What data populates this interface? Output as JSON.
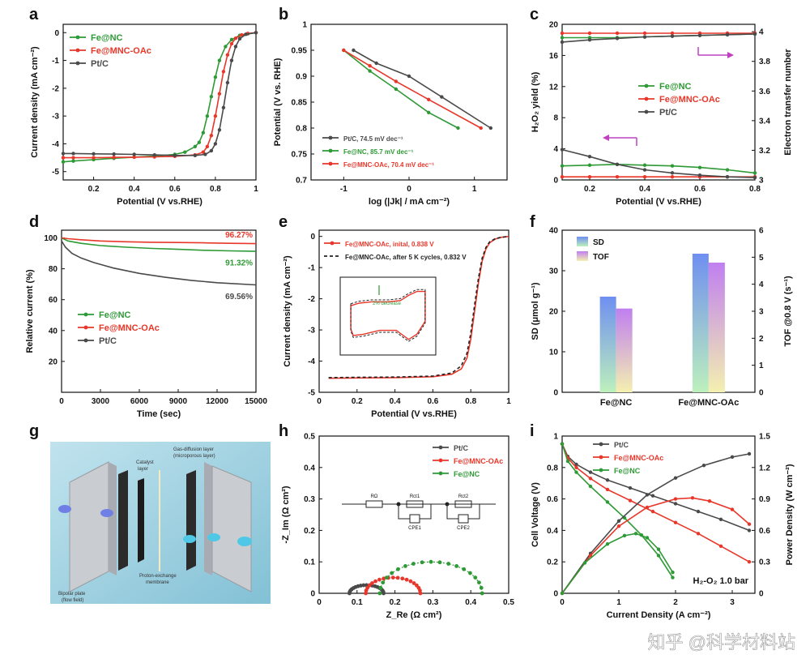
{
  "watermark": "知乎 @科学材料站",
  "colors": {
    "green": "#2e9a35",
    "red": "#e8372a",
    "gray": "#4a4a4a",
    "magenta": "#c040c0"
  },
  "chart_data": [
    {
      "panel": "a",
      "type": "line",
      "xlabel": "Potential  (V vs.RHE)",
      "ylabel": "Current density  (mA cm⁻²)",
      "xlim": [
        0.05,
        1.0
      ],
      "ylim": [
        -5.3,
        0.3
      ],
      "xticks": [
        0.2,
        0.4,
        0.6,
        0.8,
        1.0
      ],
      "yticks": [
        0,
        -1,
        -2,
        -3,
        -4,
        -5
      ],
      "legend_position": "top-left",
      "series": [
        {
          "name": "Fe@NC",
          "color": "#2e9a35",
          "x": [
            0.05,
            0.1,
            0.2,
            0.3,
            0.4,
            0.5,
            0.6,
            0.65,
            0.7,
            0.72,
            0.74,
            0.76,
            0.78,
            0.8,
            0.82,
            0.85,
            0.88,
            0.92,
            0.96,
            1.0
          ],
          "y": [
            -4.65,
            -4.62,
            -4.57,
            -4.52,
            -4.48,
            -4.44,
            -4.38,
            -4.3,
            -4.1,
            -3.95,
            -3.6,
            -3.0,
            -2.3,
            -1.6,
            -1.0,
            -0.5,
            -0.25,
            -0.1,
            -0.04,
            0
          ]
        },
        {
          "name": "Fe@MNC-OAc",
          "color": "#e8372a",
          "x": [
            0.05,
            0.1,
            0.2,
            0.3,
            0.4,
            0.5,
            0.6,
            0.7,
            0.74,
            0.76,
            0.78,
            0.8,
            0.82,
            0.84,
            0.86,
            0.88,
            0.9,
            0.93,
            0.96,
            1.0
          ],
          "y": [
            -4.5,
            -4.5,
            -4.5,
            -4.49,
            -4.48,
            -4.47,
            -4.45,
            -4.4,
            -4.3,
            -4.1,
            -3.7,
            -3.0,
            -2.2,
            -1.4,
            -0.8,
            -0.4,
            -0.2,
            -0.08,
            -0.03,
            0
          ]
        },
        {
          "name": "Pt/C",
          "color": "#4a4a4a",
          "x": [
            0.05,
            0.1,
            0.2,
            0.3,
            0.4,
            0.5,
            0.6,
            0.7,
            0.75,
            0.78,
            0.8,
            0.82,
            0.84,
            0.86,
            0.88,
            0.9,
            0.92,
            0.95,
            1.0
          ],
          "y": [
            -4.35,
            -4.35,
            -4.36,
            -4.37,
            -4.38,
            -4.4,
            -4.42,
            -4.42,
            -4.38,
            -4.25,
            -4.0,
            -3.5,
            -2.7,
            -1.8,
            -1.0,
            -0.5,
            -0.22,
            -0.06,
            0
          ]
        }
      ]
    },
    {
      "panel": "b",
      "type": "line",
      "xlabel": "log  (|Jk| / mA cm⁻²)",
      "ylabel": "Potential  (V vs. RHE)",
      "xlim": [
        -1.5,
        1.5
      ],
      "ylim": [
        0.7,
        1.0
      ],
      "xticks": [
        -1,
        0,
        1
      ],
      "yticks": [
        1.0,
        0.95,
        0.9,
        0.85,
        0.8,
        0.75,
        0.7
      ],
      "legend_position": "bottom-left",
      "series": [
        {
          "name": "Pt/C, 74.5 mV dec⁻¹",
          "color": "#4a4a4a",
          "x": [
            -0.85,
            -0.5,
            0,
            0.5,
            1.25
          ],
          "y": [
            0.95,
            0.925,
            0.9,
            0.86,
            0.8
          ]
        },
        {
          "name": "Fe@NC, 85.7 mV dec⁻¹",
          "color": "#2e9a35",
          "x": [
            -1.0,
            -0.6,
            -0.2,
            0.3,
            0.75
          ],
          "y": [
            0.95,
            0.91,
            0.875,
            0.83,
            0.8
          ]
        },
        {
          "name": "Fe@MNC-OAc, 70.4 mV dec⁻¹",
          "color": "#e8372a",
          "x": [
            -1.0,
            -0.6,
            -0.2,
            0.3,
            1.1
          ],
          "y": [
            0.95,
            0.92,
            0.89,
            0.855,
            0.8
          ]
        }
      ]
    },
    {
      "panel": "c",
      "type": "line",
      "xlabel": "Potential  (V vs.RHE)",
      "ylabel": "H₂O₂ yield  (%)",
      "ylabel_right": "Electron transfer number",
      "xlim": [
        0.1,
        0.8
      ],
      "ylim": [
        0,
        20
      ],
      "ylim_right": [
        3.0,
        4.05
      ],
      "xticks": [
        0.2,
        0.4,
        0.6,
        0.8
      ],
      "yticks": [
        0,
        4,
        8,
        12,
        16,
        20
      ],
      "yticks_right": [
        3.0,
        3.2,
        3.4,
        3.6,
        3.8,
        4.0
      ],
      "legend_position": "center-right",
      "series": [
        {
          "name": "Fe@NC",
          "color": "#2e9a35",
          "axis": "left",
          "x": [
            0.1,
            0.2,
            0.3,
            0.4,
            0.5,
            0.6,
            0.7,
            0.8
          ],
          "y": [
            1.8,
            1.9,
            2.0,
            1.9,
            1.8,
            1.6,
            1.3,
            0.9
          ]
        },
        {
          "name": "Fe@MNC-OAc",
          "color": "#e8372a",
          "axis": "left",
          "x": [
            0.1,
            0.2,
            0.3,
            0.4,
            0.5,
            0.6,
            0.7,
            0.8
          ],
          "y": [
            0.4,
            0.4,
            0.4,
            0.4,
            0.4,
            0.4,
            0.4,
            0.4
          ]
        },
        {
          "name": "Pt/C",
          "color": "#4a4a4a",
          "axis": "left",
          "x": [
            0.1,
            0.2,
            0.3,
            0.4,
            0.5,
            0.6,
            0.7,
            0.8
          ],
          "y": [
            3.9,
            3.0,
            2.0,
            1.3,
            0.9,
            0.6,
            0.4,
            0.3
          ]
        },
        {
          "name": "Fe@NC",
          "color": "#2e9a35",
          "axis": "right",
          "x": [
            0.1,
            0.2,
            0.3,
            0.4,
            0.5,
            0.6,
            0.7,
            0.8
          ],
          "y": [
            3.96,
            3.96,
            3.96,
            3.965,
            3.97,
            3.975,
            3.98,
            3.985
          ]
        },
        {
          "name": "Fe@MNC-OAc",
          "color": "#e8372a",
          "axis": "right",
          "x": [
            0.1,
            0.2,
            0.3,
            0.4,
            0.5,
            0.6,
            0.7,
            0.8
          ],
          "y": [
            3.99,
            3.99,
            3.99,
            3.99,
            3.99,
            3.99,
            3.99,
            3.99
          ]
        },
        {
          "name": "Pt/C",
          "color": "#4a4a4a",
          "axis": "right",
          "x": [
            0.1,
            0.2,
            0.3,
            0.4,
            0.5,
            0.6,
            0.7,
            0.8
          ],
          "y": [
            3.93,
            3.945,
            3.955,
            3.965,
            3.97,
            3.975,
            3.98,
            3.985
          ]
        }
      ]
    },
    {
      "panel": "d",
      "type": "line",
      "xlabel": "Time  (sec)",
      "ylabel": "Relative current  (%)",
      "xlim": [
        0,
        15000
      ],
      "ylim": [
        0,
        105
      ],
      "xticks": [
        0,
        3000,
        6000,
        9000,
        12000,
        15000
      ],
      "yticks": [
        20,
        40,
        60,
        80,
        100
      ],
      "legend_position": "bottom-left",
      "annotations": [
        "96.27%",
        "91.32%",
        "69.56%"
      ],
      "series": [
        {
          "name": "Fe@NC",
          "color": "#2e9a35",
          "x": [
            0,
            500,
            1500,
            3000,
            5000,
            7000,
            9000,
            11000,
            13000,
            15000
          ],
          "y": [
            100,
            98,
            96.5,
            95,
            94,
            93.2,
            92.6,
            92,
            91.6,
            91.32
          ]
        },
        {
          "name": "Fe@MNC-OAc",
          "color": "#e8372a",
          "x": [
            0,
            500,
            1500,
            3000,
            5000,
            7000,
            9000,
            11000,
            13000,
            15000
          ],
          "y": [
            100,
            99.5,
            98.8,
            98,
            97.5,
            97.2,
            97,
            96.8,
            96.5,
            96.27
          ]
        },
        {
          "name": "Pt/C",
          "color": "#4a4a4a",
          "x": [
            0,
            300,
            800,
            1500,
            2500,
            4000,
            6000,
            8000,
            10000,
            12000,
            15000
          ],
          "y": [
            98,
            94,
            90,
            87,
            84,
            80.5,
            77,
            74.5,
            72.5,
            71,
            69.56
          ]
        }
      ]
    },
    {
      "panel": "e",
      "type": "line",
      "xlabel": "Potential  (V vs.RHE)",
      "ylabel": "Current density  (mA cm⁻²)",
      "xlim": [
        0.0,
        1.0
      ],
      "ylim": [
        -5.0,
        0.2
      ],
      "xticks": [
        0.0,
        0.2,
        0.4,
        0.6,
        0.8,
        1.0
      ],
      "yticks": [
        0,
        -1,
        -2,
        -3,
        -4,
        -5
      ],
      "legend_position": "top-left",
      "inset_annotation": "2% decrease",
      "series": [
        {
          "name": "Fe@MNC-OAc, initial, 0.838 V",
          "color": "#e8372a",
          "x": [
            0.05,
            0.2,
            0.4,
            0.6,
            0.7,
            0.75,
            0.78,
            0.8,
            0.82,
            0.84,
            0.86,
            0.88,
            0.9,
            0.93,
            0.96,
            1.0
          ],
          "y": [
            -4.55,
            -4.54,
            -4.53,
            -4.5,
            -4.42,
            -4.25,
            -3.9,
            -3.3,
            -2.4,
            -1.5,
            -0.8,
            -0.4,
            -0.2,
            -0.08,
            -0.03,
            0
          ]
        },
        {
          "name": "Fe@MNC-OAc, after 5 K cycles, 0.832 V",
          "color": "#222222",
          "dashed": true,
          "x": [
            0.05,
            0.2,
            0.4,
            0.6,
            0.7,
            0.75,
            0.78,
            0.8,
            0.82,
            0.84,
            0.86,
            0.88,
            0.9,
            0.93,
            0.96,
            1.0
          ],
          "y": [
            -4.53,
            -4.52,
            -4.51,
            -4.48,
            -4.38,
            -4.15,
            -3.75,
            -3.1,
            -2.2,
            -1.35,
            -0.7,
            -0.35,
            -0.17,
            -0.07,
            -0.03,
            0
          ]
        }
      ]
    },
    {
      "panel": "f",
      "type": "bar",
      "categories": [
        "Fe@NC",
        "Fe@MNC-OAc"
      ],
      "ylabel": "SD  (μmol g⁻¹)",
      "ylabel_right": "TOF @0.8 V  (s⁻¹)",
      "ylim": [
        0,
        40
      ],
      "ylim_right": [
        0,
        6
      ],
      "yticks": [
        0,
        10,
        20,
        30,
        40
      ],
      "yticks_right": [
        0,
        1,
        2,
        3,
        4,
        5,
        6
      ],
      "legend_position": "top-left",
      "series": [
        {
          "name": "SD",
          "axis": "left",
          "values": [
            23.6,
            34.2
          ]
        },
        {
          "name": "TOF",
          "axis": "right",
          "values": [
            3.1,
            4.8
          ]
        }
      ]
    },
    {
      "panel": "h",
      "type": "scatter",
      "xlabel": "Z_Re  (Ω cm²)",
      "ylabel": "-Z_Im  (Ω cm²)",
      "xlim": [
        0.0,
        0.5
      ],
      "ylim": [
        0.0,
        0.5
      ],
      "xticks": [
        0.0,
        0.1,
        0.2,
        0.3,
        0.4,
        0.5
      ],
      "yticks": [
        0.0,
        0.1,
        0.2,
        0.3,
        0.4,
        0.5
      ],
      "legend_position": "top-right",
      "circuit_labels": [
        "RΩ",
        "Rct1",
        "Rct2",
        "CPE1",
        "CPE2"
      ],
      "series": [
        {
          "name": "Pt/C",
          "color": "#4a4a4a",
          "center": 0.125,
          "radius": 0.045,
          "peak": 0.026
        },
        {
          "name": "Fe@MNC-OAc",
          "color": "#e8372a",
          "center": 0.195,
          "radius": 0.072,
          "peak": 0.05
        },
        {
          "name": "Fe@NC",
          "color": "#2e9a35",
          "center": 0.295,
          "radius": 0.135,
          "peak": 0.1
        }
      ]
    },
    {
      "panel": "i",
      "type": "line",
      "xlabel": "Current Density  (A cm⁻²)",
      "ylabel": "Cell Voltage  (V)",
      "ylabel_right": "Power Density  (W cm⁻²)",
      "xlim": [
        0,
        3.4
      ],
      "ylim": [
        0,
        1.0
      ],
      "ylim_right": [
        0,
        1.5
      ],
      "xticks": [
        0,
        1,
        2,
        3
      ],
      "yticks": [
        0,
        0.2,
        0.4,
        0.6,
        0.8,
        1.0
      ],
      "yticks_right": [
        0,
        0.3,
        0.6,
        0.9,
        1.2,
        1.5
      ],
      "legend_position": "top-center",
      "annotation": "H₂-O₂ 1.0 bar",
      "series": [
        {
          "name": "Pt/C",
          "color": "#4a4a4a",
          "axis": "left",
          "x": [
            0,
            0.1,
            0.25,
            0.5,
            0.8,
            1.2,
            1.6,
            2.0,
            2.4,
            2.8,
            3.3
          ],
          "y": [
            0.95,
            0.87,
            0.82,
            0.77,
            0.72,
            0.67,
            0.62,
            0.57,
            0.52,
            0.47,
            0.4
          ]
        },
        {
          "name": "Fe@MNC-OAc",
          "color": "#e8372a",
          "axis": "left",
          "x": [
            0,
            0.1,
            0.25,
            0.5,
            0.8,
            1.2,
            1.6,
            2.0,
            2.4,
            2.8,
            3.3
          ],
          "y": [
            0.95,
            0.86,
            0.8,
            0.73,
            0.66,
            0.59,
            0.52,
            0.45,
            0.38,
            0.3,
            0.2
          ]
        },
        {
          "name": "Fe@NC",
          "color": "#2e9a35",
          "axis": "left",
          "x": [
            0,
            0.1,
            0.25,
            0.5,
            0.8,
            1.1,
            1.4,
            1.7,
            1.95
          ],
          "y": [
            0.95,
            0.84,
            0.77,
            0.68,
            0.58,
            0.48,
            0.37,
            0.24,
            0.1
          ]
        },
        {
          "name": "Pt/C",
          "color": "#4a4a4a",
          "axis": "right",
          "x": [
            0,
            0.5,
            1.0,
            1.5,
            2.0,
            2.5,
            3.0,
            3.3
          ],
          "y": [
            0,
            0.38,
            0.69,
            0.94,
            1.1,
            1.22,
            1.3,
            1.33
          ]
        },
        {
          "name": "Fe@MNC-OAc",
          "color": "#e8372a",
          "axis": "right",
          "x": [
            0,
            0.5,
            1.0,
            1.5,
            2.0,
            2.3,
            2.6,
            3.0,
            3.3
          ],
          "y": [
            0,
            0.36,
            0.64,
            0.82,
            0.9,
            0.91,
            0.88,
            0.8,
            0.66
          ]
        },
        {
          "name": "Fe@NC",
          "color": "#2e9a35",
          "axis": "right",
          "x": [
            0,
            0.4,
            0.8,
            1.1,
            1.3,
            1.5,
            1.7,
            1.95
          ],
          "y": [
            0,
            0.29,
            0.47,
            0.55,
            0.57,
            0.53,
            0.42,
            0.2
          ]
        }
      ]
    }
  ],
  "panels": {
    "a": {
      "label": "a",
      "legend": [
        "Fe@NC",
        "Fe@MNC-OAc",
        "Pt/C"
      ]
    },
    "b": {
      "label": "b",
      "legend": [
        "Pt/C, 74.5 mV dec⁻¹",
        "Fe@NC, 85.7 mV dec⁻¹",
        "Fe@MNC-OAc, 70.4 mV dec⁻¹"
      ]
    },
    "c": {
      "label": "c",
      "legend": [
        "Fe@NC",
        "Fe@MNC-OAc",
        "Pt/C"
      ]
    },
    "d": {
      "label": "d",
      "legend": [
        "Fe@NC",
        "Fe@MNC-OAc",
        "Pt/C"
      ]
    },
    "e": {
      "label": "e",
      "legend": [
        "Fe@MNC-OAc, inital, 0.838 V",
        "Fe@MNC-OAc, after 5 K cycles, 0.832 V"
      ]
    },
    "f": {
      "label": "f",
      "legend": [
        "SD",
        "TOF"
      ]
    },
    "g": {
      "label": "g",
      "labels": [
        "Gas-diffusion layer (microporous layer)",
        "Catalyst layer",
        "Proton-exchange membrane",
        "Bipolar plate (flow field)"
      ]
    },
    "h": {
      "label": "h",
      "legend": [
        "Pt/C",
        "Fe@MNC-OAc",
        "Fe@NC"
      ]
    },
    "i": {
      "label": "i",
      "legend": [
        "Pt/C",
        "Fe@MNC-OAc",
        "Fe@NC"
      ]
    }
  }
}
